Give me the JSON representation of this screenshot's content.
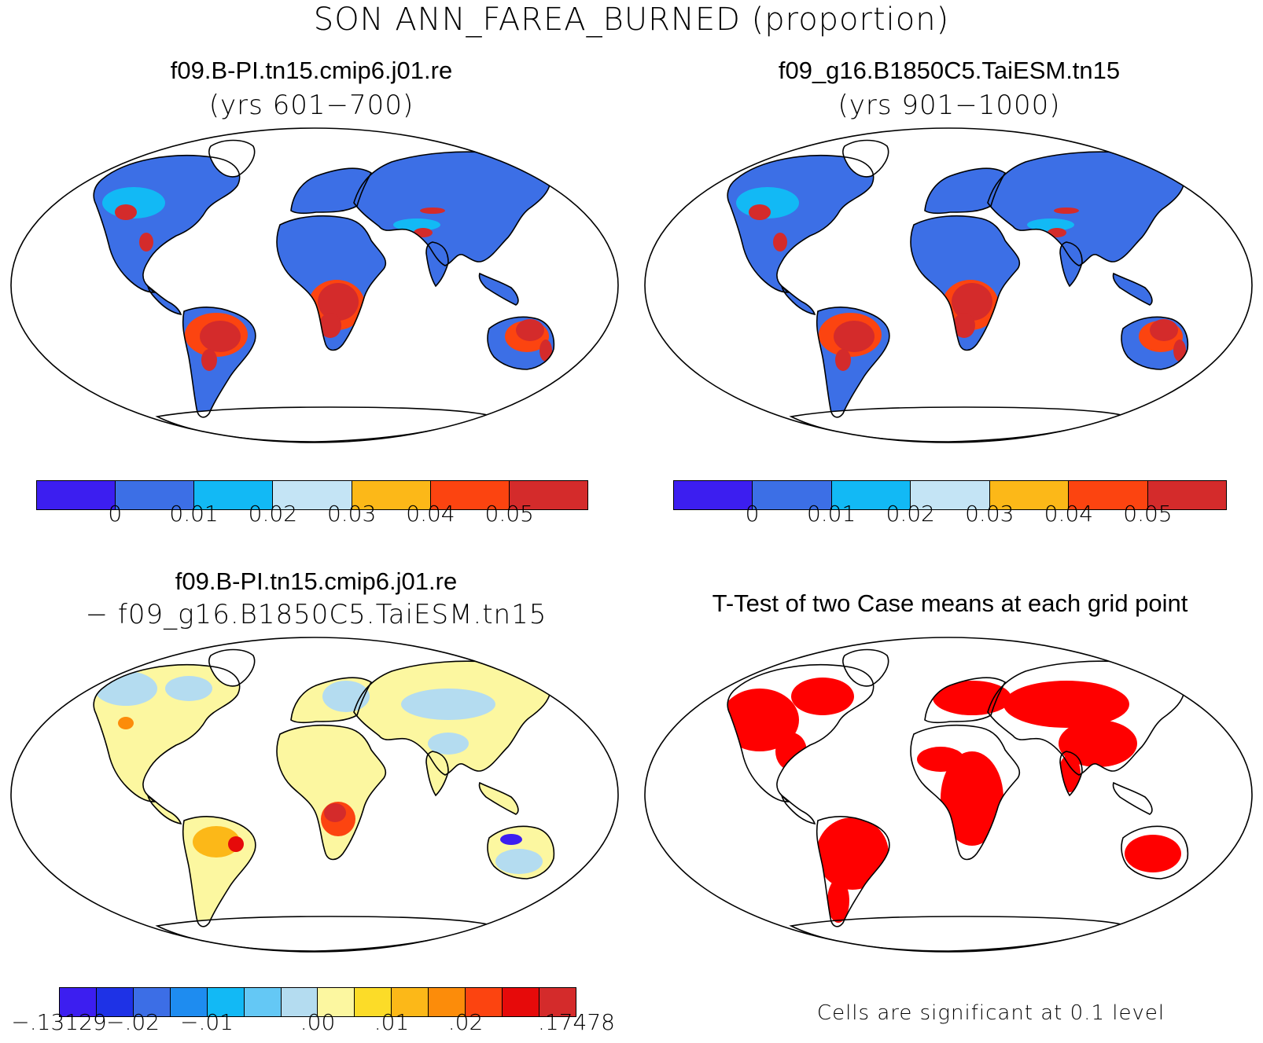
{
  "title": "SON ANN_FAREA_BURNED (proportion)",
  "panels": {
    "top_left": {
      "name": "f09.B-PI.tn15.cmip6.j01.re",
      "years": "(yrs 601−700)"
    },
    "top_right": {
      "name": "f09_g16.B1850C5.TaiESM.tn15",
      "years": "(yrs 901−1000)"
    },
    "bottom_left": {
      "name": "f09.B-PI.tn15.cmip6.j01.re",
      "subtitle": "− f09_g16.B1850C5.TaiESM.tn15"
    },
    "bottom_right": {
      "title": "T-Test of two Case means at each grid point",
      "note": "Cells are significant at 0.1 level"
    }
  },
  "colorbars": {
    "abs": {
      "colors": [
        "#3c1ef0",
        "#3c6fe6",
        "#12b9f5",
        "#c4e4f5",
        "#fcb818",
        "#fc4410",
        "#d42b2b"
      ],
      "labels": [
        "0",
        "0.01",
        "0.02",
        "0.03",
        "0.04",
        "0.05"
      ]
    },
    "diff": {
      "colors": [
        "#3c1ef0",
        "#1e32e6",
        "#3c6ee6",
        "#1e8cf0",
        "#12b9f5",
        "#64c8f5",
        "#b4dcf0",
        "#fcf7a0",
        "#fcdc28",
        "#fcb818",
        "#fc8c0a",
        "#fc4410",
        "#e60a0a",
        "#d42b2b"
      ],
      "labels": [
        "−.13129",
        "−.02",
        "−.01",
        ".00",
        ".01",
        ".02",
        ".17478"
      ]
    }
  },
  "colors": {
    "land_abs": "#3c6fe6",
    "hot_abs": "#d42b2b",
    "land_diff": "#fcf7a0",
    "cool_diff": "#b4dcf0",
    "significant": "#ff0000"
  }
}
